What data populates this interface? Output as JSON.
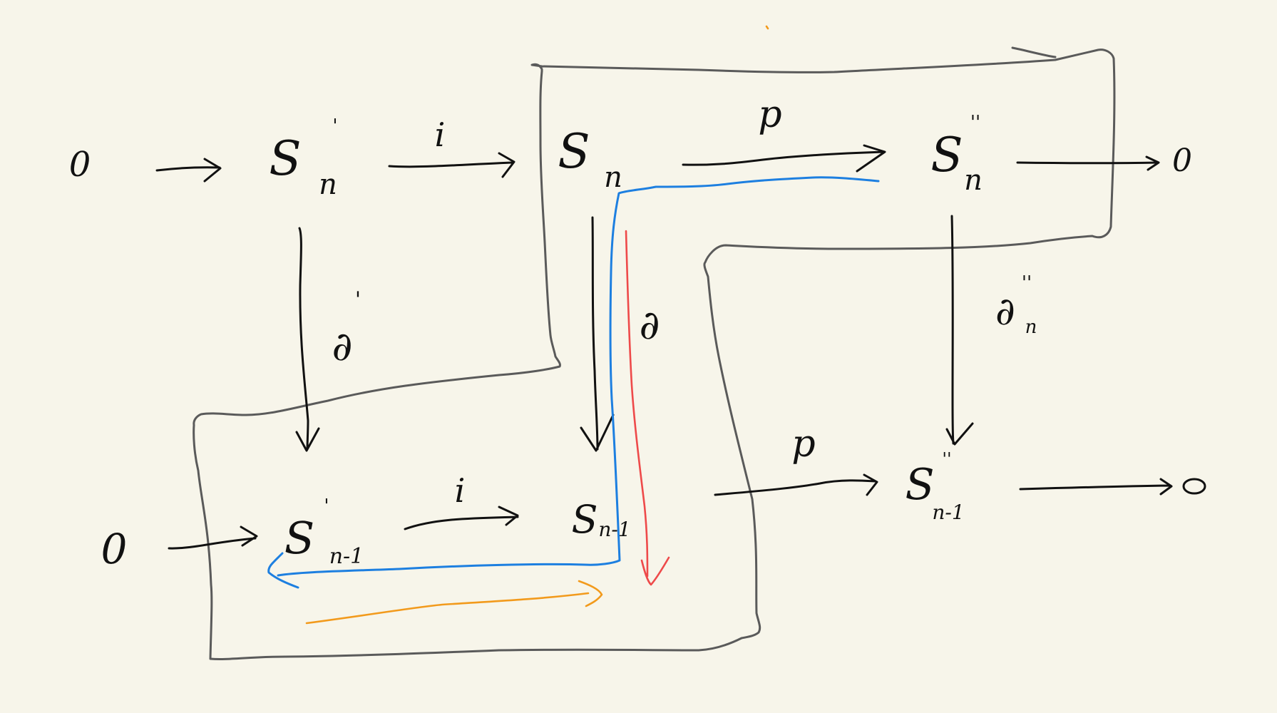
{
  "diagram": {
    "zeros": {
      "top_left": "0",
      "top_right": "0",
      "bottom_left": "0",
      "bottom_right": "0"
    },
    "nodes": {
      "s_n_prime": {
        "base": "S",
        "prime": "'",
        "sub": "n"
      },
      "s_n": {
        "base": "S",
        "sub": "n"
      },
      "s_n_dprime": {
        "base": "S",
        "prime": "''",
        "sub": "n"
      },
      "s_n1_prime": {
        "base": "S",
        "prime": "'",
        "sub": "n-1"
      },
      "s_n1": {
        "base": "S",
        "sub": "n-1"
      },
      "s_n1_dprime": {
        "base": "S",
        "prime": "''",
        "sub": "n-1"
      }
    },
    "maps": {
      "i_top": "i",
      "p_top": "p",
      "i_bottom": "i",
      "p_bottom": "p",
      "d_prime": {
        "symbol": "∂",
        "prime": "'"
      },
      "d": "∂",
      "d_dprime": {
        "symbol": "∂",
        "prime": "''",
        "sub": "n"
      }
    },
    "colors": {
      "background": "#f7f5ea",
      "ink": "#111111",
      "snake_outline": "#5a5a5a",
      "blue_path": "#1d7fe0",
      "red_path": "#ee4a4a",
      "orange_path": "#f29a1c"
    }
  }
}
